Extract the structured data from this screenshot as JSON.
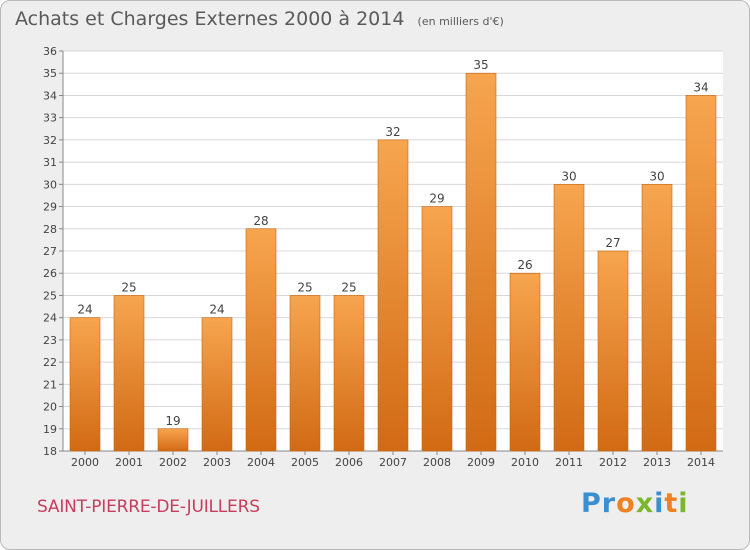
{
  "header": {
    "title": "Achats et Charges Externes 2000 à 2014",
    "unit": "(en milliers d'€)"
  },
  "footer": {
    "commune": "SAINT-PIERRE-DE-JUILLERS",
    "logo": "Proxiti"
  },
  "colors": {
    "bar_light": "#f7a54f",
    "bar_dark": "#d26a14",
    "background": "#eeeeee",
    "commune_text": "#c83c5c",
    "logo_letters": [
      "#3a8fd0",
      "#3a8fd0",
      "#f08020",
      "#7ab72a",
      "#3a8fd0",
      "#f08020",
      "#7ab72a"
    ]
  },
  "chart_data": {
    "type": "bar",
    "title": "Achats et Charges Externes 2000 à 2014",
    "subtitle": "(en milliers d'€)",
    "categories": [
      "2000",
      "2001",
      "2002",
      "2003",
      "2004",
      "2005",
      "2006",
      "2007",
      "2008",
      "2009",
      "2010",
      "2011",
      "2012",
      "2013",
      "2014"
    ],
    "values": [
      24,
      25,
      19,
      24,
      28,
      25,
      25,
      32,
      29,
      35,
      26,
      30,
      27,
      30,
      34
    ],
    "ylim": [
      18,
      36
    ],
    "yticks": [
      18,
      19,
      20,
      21,
      22,
      23,
      24,
      25,
      26,
      27,
      28,
      29,
      30,
      31,
      32,
      33,
      34,
      35,
      36
    ],
    "grid": true,
    "data_labels": true,
    "xlabel": "",
    "ylabel": ""
  }
}
